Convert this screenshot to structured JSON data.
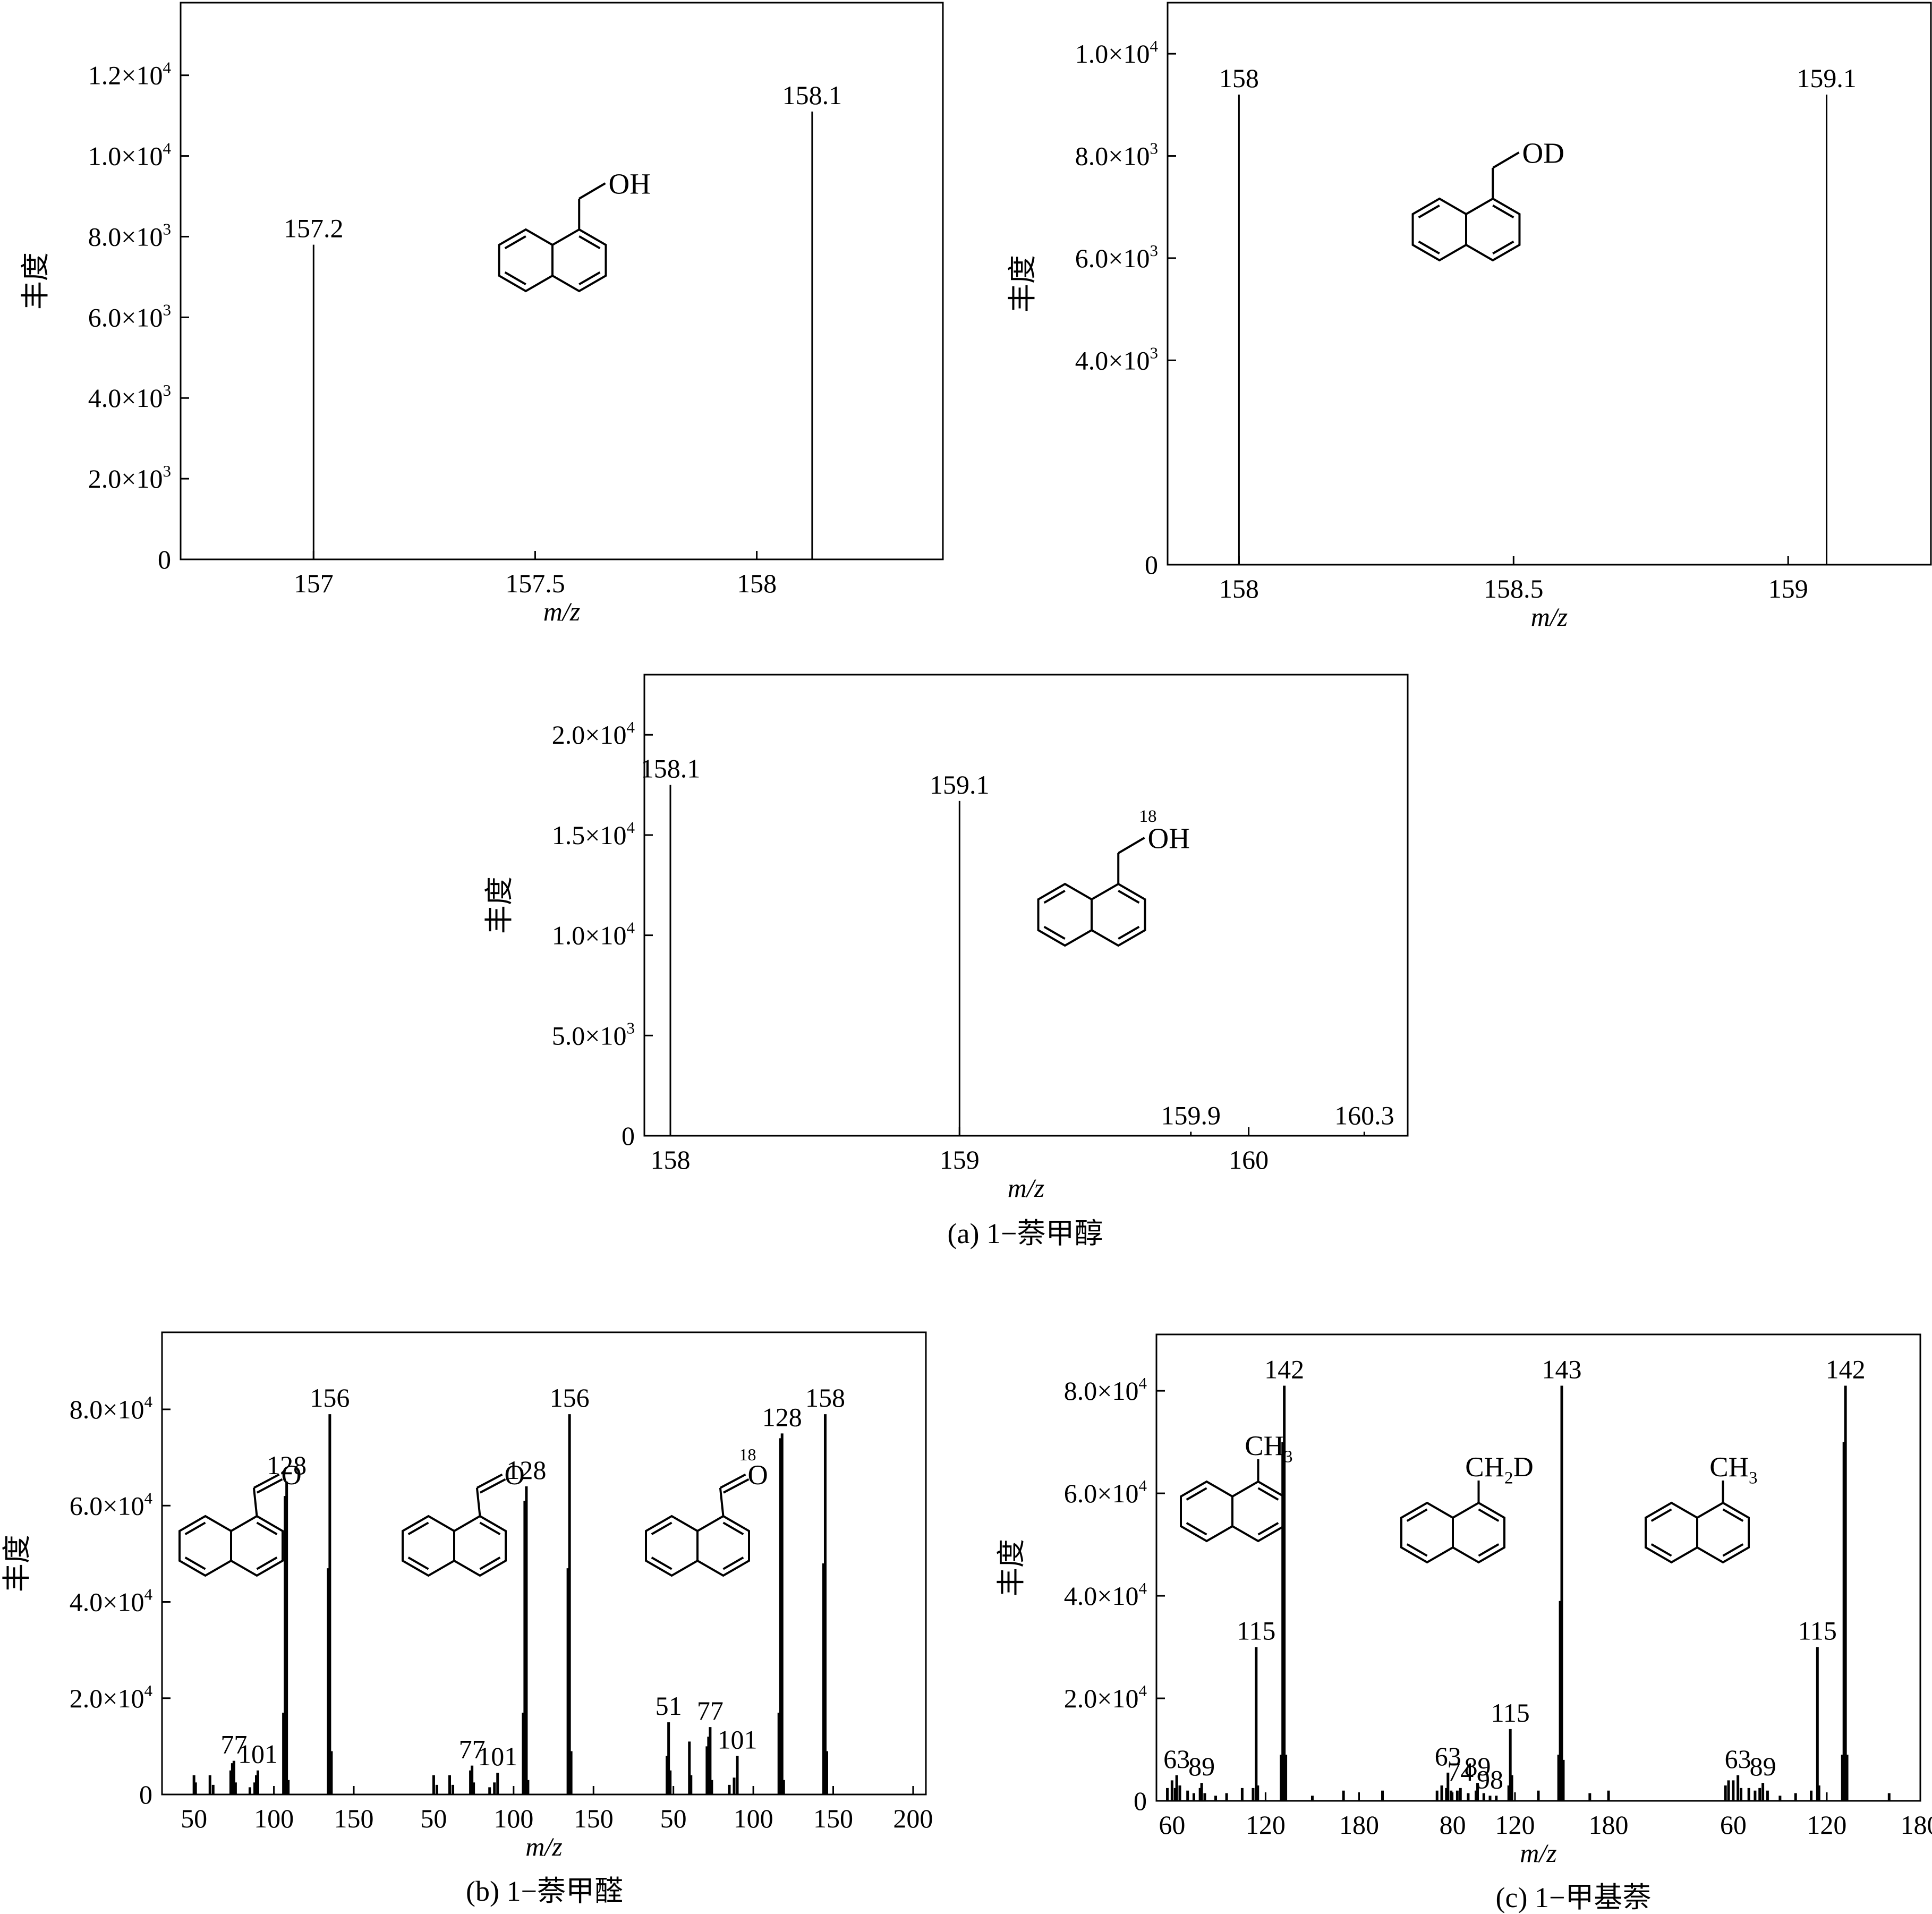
{
  "chart_data": [
    {
      "id": "a1",
      "type": "bar",
      "xlabel": "m/z",
      "ylabel": "丰度",
      "xlim": [
        156.7,
        158.42
      ],
      "ylim": [
        0,
        13800
      ],
      "xticks": [
        {
          "v": 157,
          "label": "157"
        },
        {
          "v": 157.5,
          "label": "157.5"
        },
        {
          "v": 158,
          "label": "158"
        }
      ],
      "yticks": [
        {
          "v": 0,
          "label": "0"
        },
        {
          "v": 2000,
          "label": "2.0×10^3"
        },
        {
          "v": 4000,
          "label": "4.0×10^3"
        },
        {
          "v": 6000,
          "label": "6.0×10^3"
        },
        {
          "v": 8000,
          "label": "8.0×10^3"
        },
        {
          "v": 10000,
          "label": "1.0×10^4"
        },
        {
          "v": 12000,
          "label": "1.2×10^4"
        }
      ],
      "peaks": [
        {
          "x": 157.0,
          "y": 7800,
          "label": "157.2"
        },
        {
          "x": 158.125,
          "y": 11100,
          "label": "158.1"
        }
      ],
      "molecule": {
        "kind": "naphthalene",
        "group": "OH",
        "iso": ""
      }
    },
    {
      "id": "a2",
      "type": "bar",
      "xlabel": "m/z",
      "ylabel": "丰度",
      "xlim": [
        157.87,
        159.26
      ],
      "ylim": [
        0,
        11000
      ],
      "xticks": [
        {
          "v": 158,
          "label": "158"
        },
        {
          "v": 158.5,
          "label": "158.5"
        },
        {
          "v": 159,
          "label": "159"
        }
      ],
      "yticks": [
        {
          "v": 0,
          "label": "0"
        },
        {
          "v": 4000,
          "label": "4.0×10^3"
        },
        {
          "v": 6000,
          "label": "6.0×10^3"
        },
        {
          "v": 8000,
          "label": "8.0×10^3"
        },
        {
          "v": 10000,
          "label": "1.0×10^4"
        }
      ],
      "peaks": [
        {
          "x": 158.0,
          "y": 9200,
          "label": "158"
        },
        {
          "x": 159.07,
          "y": 9200,
          "label": "159.1"
        }
      ],
      "molecule": {
        "kind": "naphthalene",
        "group": "OD",
        "iso": ""
      }
    },
    {
      "id": "a3",
      "type": "bar",
      "xlabel": "m/z",
      "ylabel": "丰度",
      "xlim": [
        157.91,
        160.55
      ],
      "ylim": [
        0,
        23000
      ],
      "xticks": [
        {
          "v": 158,
          "label": "158"
        },
        {
          "v": 159,
          "label": "159"
        },
        {
          "v": 160,
          "label": "160"
        }
      ],
      "yticks": [
        {
          "v": 0,
          "label": "0"
        },
        {
          "v": 5000,
          "label": "5.0×10^3"
        },
        {
          "v": 10000,
          "label": "1.0×10^4"
        },
        {
          "v": 15000,
          "label": "1.5×10^4"
        },
        {
          "v": 20000,
          "label": "2.0×10^4"
        }
      ],
      "peaks": [
        {
          "x": 158.0,
          "y": 17500,
          "label": "158.1"
        },
        {
          "x": 159.0,
          "y": 16700,
          "label": "159.1"
        },
        {
          "x": 159.8,
          "y": 200,
          "label": "159.9"
        },
        {
          "x": 160.4,
          "y": 200,
          "label": "160.3"
        }
      ],
      "molecule": {
        "kind": "naphthalene",
        "group": "OH",
        "iso": "18"
      }
    },
    {
      "id": "b",
      "type": "bar",
      "xlabel": "m/z",
      "ylabel": "丰度",
      "xlim": [
        0,
        478
      ],
      "ylim": [
        0,
        96000
      ],
      "xticks": [
        {
          "v": 20,
          "label": "50"
        },
        {
          "v": 70,
          "label": "100"
        },
        {
          "v": 120,
          "label": "150"
        },
        {
          "v": 170,
          "label": "50"
        },
        {
          "v": 220,
          "label": "100"
        },
        {
          "v": 270,
          "label": "150"
        },
        {
          "v": 320,
          "label": "50"
        },
        {
          "v": 370,
          "label": "100"
        },
        {
          "v": 420,
          "label": "150"
        },
        {
          "v": 470,
          "label": "200"
        }
      ],
      "yticks": [
        {
          "v": 0,
          "label": "0"
        },
        {
          "v": 20000,
          "label": "2.0×10^4"
        },
        {
          "v": 40000,
          "label": "4.0×10^4"
        },
        {
          "v": 60000,
          "label": "6.0×10^4"
        },
        {
          "v": 80000,
          "label": "8.0×10^4"
        }
      ],
      "peaks": [
        {
          "x": 20,
          "y": 4000
        },
        {
          "x": 21,
          "y": 2500
        },
        {
          "x": 30,
          "y": 4000
        },
        {
          "x": 32,
          "y": 2000
        },
        {
          "x": 43,
          "y": 5000
        },
        {
          "x": 44,
          "y": 6500
        },
        {
          "x": 45,
          "y": 7000,
          "label": "77"
        },
        {
          "x": 46,
          "y": 2500
        },
        {
          "x": 55,
          "y": 1500
        },
        {
          "x": 58,
          "y": 2500
        },
        {
          "x": 59,
          "y": 4000
        },
        {
          "x": 60,
          "y": 5000,
          "label": "101"
        },
        {
          "x": 76,
          "y": 17000
        },
        {
          "x": 77,
          "y": 62000
        },
        {
          "x": 78,
          "y": 65000,
          "label": "128"
        },
        {
          "x": 79,
          "y": 3000
        },
        {
          "x": 104,
          "y": 47000
        },
        {
          "x": 105,
          "y": 79000,
          "label": "156"
        },
        {
          "x": 106,
          "y": 9000
        },
        {
          "x": 170,
          "y": 4000
        },
        {
          "x": 172,
          "y": 2000
        },
        {
          "x": 180,
          "y": 4000
        },
        {
          "x": 182,
          "y": 2000
        },
        {
          "x": 193,
          "y": 5000
        },
        {
          "x": 194,
          "y": 6000,
          "label": "77"
        },
        {
          "x": 195,
          "y": 2500
        },
        {
          "x": 205,
          "y": 1500
        },
        {
          "x": 208,
          "y": 2500
        },
        {
          "x": 210,
          "y": 4500,
          "label": "101"
        },
        {
          "x": 226,
          "y": 17000
        },
        {
          "x": 227,
          "y": 61000
        },
        {
          "x": 228,
          "y": 64000,
          "label": "128"
        },
        {
          "x": 229,
          "y": 3000
        },
        {
          "x": 254,
          "y": 47000
        },
        {
          "x": 255,
          "y": 79000,
          "label": "156"
        },
        {
          "x": 256,
          "y": 9000
        },
        {
          "x": 316,
          "y": 8000
        },
        {
          "x": 317,
          "y": 15000,
          "label": "51"
        },
        {
          "x": 318,
          "y": 5000
        },
        {
          "x": 330,
          "y": 11000
        },
        {
          "x": 331,
          "y": 4000
        },
        {
          "x": 341,
          "y": 10000
        },
        {
          "x": 342,
          "y": 12000
        },
        {
          "x": 343,
          "y": 14000,
          "label": "77"
        },
        {
          "x": 344,
          "y": 3000
        },
        {
          "x": 355,
          "y": 2000
        },
        {
          "x": 358,
          "y": 3500
        },
        {
          "x": 360,
          "y": 8000,
          "label": "101"
        },
        {
          "x": 386,
          "y": 17000
        },
        {
          "x": 387,
          "y": 74000
        },
        {
          "x": 388,
          "y": 75000,
          "label": "128"
        },
        {
          "x": 389,
          "y": 3000
        },
        {
          "x": 414,
          "y": 48000
        },
        {
          "x": 415,
          "y": 79000,
          "label": "158"
        },
        {
          "x": 416,
          "y": 9000
        }
      ],
      "molecules": [
        {
          "kind": "naphthalene",
          "group": "O",
          "iso": ""
        },
        {
          "kind": "naphthalene",
          "group": "O",
          "iso": ""
        },
        {
          "kind": "naphthalene",
          "group": "O",
          "iso": "18"
        }
      ]
    },
    {
      "id": "c",
      "type": "bar",
      "xlabel": "m/z",
      "ylabel": "丰度",
      "xlim": [
        0,
        490
      ],
      "ylim": [
        0,
        91000
      ],
      "xticks": [
        {
          "v": 10,
          "label": "60"
        },
        {
          "v": 70,
          "label": "120"
        },
        {
          "v": 130,
          "label": "180"
        },
        {
          "v": 190,
          "label": "80"
        },
        {
          "v": 230,
          "label": "120"
        },
        {
          "v": 290,
          "label": "180"
        },
        {
          "v": 370,
          "label": "60"
        },
        {
          "v": 430,
          "label": "120"
        },
        {
          "v": 490,
          "label": "180"
        }
      ],
      "yticks": [
        {
          "v": 0,
          "label": "0"
        },
        {
          "v": 20000,
          "label": "2.0×10^4"
        },
        {
          "v": 40000,
          "label": "4.0×10^4"
        },
        {
          "v": 60000,
          "label": "6.0×10^4"
        },
        {
          "v": 80000,
          "label": "8.0×10^4"
        }
      ],
      "peaks": [
        {
          "x": 7,
          "y": 2500
        },
        {
          "x": 10,
          "y": 4000
        },
        {
          "x": 12,
          "y": 2500
        },
        {
          "x": 13,
          "y": 5000,
          "label": "63"
        },
        {
          "x": 15,
          "y": 3000
        },
        {
          "x": 20,
          "y": 2000
        },
        {
          "x": 24,
          "y": 1500
        },
        {
          "x": 28,
          "y": 2500
        },
        {
          "x": 29,
          "y": 3500,
          "label": "89"
        },
        {
          "x": 31,
          "y": 1500
        },
        {
          "x": 38,
          "y": 1000
        },
        {
          "x": 45,
          "y": 1500
        },
        {
          "x": 55,
          "y": 2500
        },
        {
          "x": 62,
          "y": 2500
        },
        {
          "x": 64,
          "y": 30000,
          "label": "115"
        },
        {
          "x": 65,
          "y": 3000
        },
        {
          "x": 80,
          "y": 9000
        },
        {
          "x": 81,
          "y": 70000
        },
        {
          "x": 82,
          "y": 81000,
          "label": "142"
        },
        {
          "x": 83,
          "y": 9000
        },
        {
          "x": 100,
          "y": 1000
        },
        {
          "x": 120,
          "y": 2000
        },
        {
          "x": 145,
          "y": 2000
        },
        {
          "x": 180,
          "y": 2000
        },
        {
          "x": 183,
          "y": 3000
        },
        {
          "x": 186,
          "y": 2500
        },
        {
          "x": 187,
          "y": 5500,
          "label": "63"
        },
        {
          "x": 189,
          "y": 2000
        },
        {
          "x": 193,
          "y": 2000
        },
        {
          "x": 195,
          "y": 2500,
          "label": "74"
        },
        {
          "x": 200,
          "y": 1500
        },
        {
          "x": 205,
          "y": 2000
        },
        {
          "x": 206,
          "y": 3500,
          "label": "89"
        },
        {
          "x": 210,
          "y": 1500
        },
        {
          "x": 214,
          "y": 1000,
          "label": "98"
        },
        {
          "x": 218,
          "y": 1000
        },
        {
          "x": 226,
          "y": 3000
        },
        {
          "x": 227,
          "y": 14000,
          "label": "115"
        },
        {
          "x": 228,
          "y": 5000
        },
        {
          "x": 245,
          "y": 2000
        },
        {
          "x": 258,
          "y": 9000
        },
        {
          "x": 259,
          "y": 39000
        },
        {
          "x": 260,
          "y": 81000,
          "label": "143"
        },
        {
          "x": 261,
          "y": 8000
        },
        {
          "x": 278,
          "y": 1500
        },
        {
          "x": 290,
          "y": 2000
        },
        {
          "x": 365,
          "y": 3000
        },
        {
          "x": 367,
          "y": 4000
        },
        {
          "x": 370,
          "y": 4000
        },
        {
          "x": 373,
          "y": 5000,
          "label": "63"
        },
        {
          "x": 375,
          "y": 2500
        },
        {
          "x": 380,
          "y": 2500
        },
        {
          "x": 384,
          "y": 2000
        },
        {
          "x": 387,
          "y": 2500
        },
        {
          "x": 389,
          "y": 3500,
          "label": "89"
        },
        {
          "x": 392,
          "y": 2000
        },
        {
          "x": 400,
          "y": 1000
        },
        {
          "x": 410,
          "y": 1500
        },
        {
          "x": 420,
          "y": 2000
        },
        {
          "x": 424,
          "y": 30000,
          "label": "115"
        },
        {
          "x": 425,
          "y": 3000
        },
        {
          "x": 440,
          "y": 9000
        },
        {
          "x": 441,
          "y": 70000
        },
        {
          "x": 442,
          "y": 81000,
          "label": "142"
        },
        {
          "x": 443,
          "y": 9000
        },
        {
          "x": 470,
          "y": 1500
        }
      ],
      "molecules": [
        {
          "kind": "naphthalene",
          "group": "CH3"
        },
        {
          "kind": "naphthalene",
          "group": "CH2D"
        },
        {
          "kind": "naphthalene",
          "group": "CH3"
        }
      ]
    }
  ],
  "captions": {
    "a": "(a) 1−萘甲醇",
    "b": "(b) 1−萘甲醛",
    "c": "(c) 1−甲基萘"
  }
}
